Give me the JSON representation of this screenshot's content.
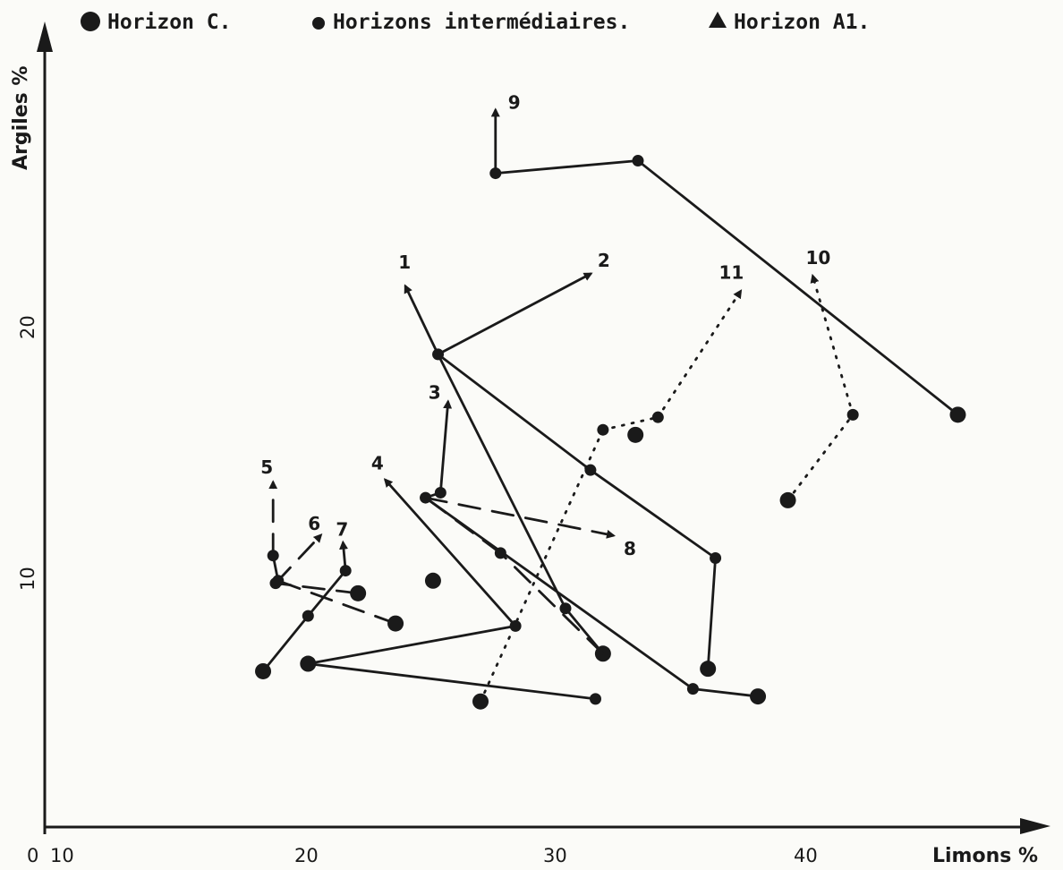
{
  "chart_data": {
    "type": "line",
    "xlabel": "Limons %",
    "ylabel": "Argiles %",
    "xlim": [
      10,
      50
    ],
    "ylim": [
      0,
      28
    ],
    "x_ticks": [
      "10",
      "20",
      "30",
      "40"
    ],
    "y_ticks": [
      "10",
      "20"
    ],
    "origin_label": "0",
    "legend": [
      {
        "marker": "large-dot",
        "label": "Horizon C."
      },
      {
        "marker": "small-dot",
        "label": "Horizons intermédiaires."
      },
      {
        "marker": "triangle",
        "label": "Horizon A1."
      }
    ],
    "series": [
      {
        "name": "1",
        "style": "solid",
        "points": [
          {
            "x": 31.8,
            "y": 7.0,
            "h": "C"
          },
          {
            "x": 30.3,
            "y": 8.8,
            "h": "I"
          },
          {
            "x": 25.2,
            "y": 18.9,
            "h": "I"
          },
          {
            "x": 23.9,
            "y": 21.6,
            "h": "A1"
          }
        ]
      },
      {
        "name": "2",
        "style": "solid",
        "points": [
          {
            "x": 36.0,
            "y": 6.4,
            "h": "C"
          },
          {
            "x": 36.3,
            "y": 10.8,
            "h": "I"
          },
          {
            "x": 31.3,
            "y": 14.3,
            "h": "I"
          },
          {
            "x": 25.2,
            "y": 18.9,
            "h": "I"
          },
          {
            "x": 31.3,
            "y": 22.1,
            "h": "A1"
          }
        ]
      },
      {
        "name": "3",
        "style": "solid",
        "points": [
          {
            "x": 38.0,
            "y": 5.3,
            "h": "C"
          },
          {
            "x": 35.4,
            "y": 5.6,
            "h": "I"
          },
          {
            "x": 24.7,
            "y": 13.2,
            "h": "I"
          },
          {
            "x": 25.3,
            "y": 13.4,
            "h": "I"
          },
          {
            "x": 25.6,
            "y": 17.0,
            "h": "A1"
          }
        ]
      },
      {
        "name": "4",
        "style": "solid",
        "points": [
          {
            "x": 31.5,
            "y": 5.2,
            "h": "I"
          },
          {
            "x": 20.0,
            "y": 6.6,
            "h": "C"
          },
          {
            "x": 28.3,
            "y": 8.1,
            "h": "I"
          },
          {
            "x": 23.1,
            "y": 13.9,
            "h": "A1"
          }
        ]
      },
      {
        "name": "5",
        "style": "dashed",
        "points": [
          {
            "x": 23.5,
            "y": 8.2,
            "h": "C"
          },
          {
            "x": 18.8,
            "y": 9.9,
            "h": "I"
          },
          {
            "x": 18.6,
            "y": 10.9,
            "h": "I"
          },
          {
            "x": 18.6,
            "y": 13.8,
            "h": "A1"
          }
        ]
      },
      {
        "name": "6",
        "style": "dashed",
        "points": [
          {
            "x": 22.0,
            "y": 9.4,
            "h": "C"
          },
          {
            "x": 18.7,
            "y": 9.8,
            "h": "I"
          },
          {
            "x": 20.5,
            "y": 11.7,
            "h": "A1"
          }
        ]
      },
      {
        "name": "7",
        "style": "solid",
        "points": [
          {
            "x": 18.2,
            "y": 6.3,
            "h": "C"
          },
          {
            "x": 20.0,
            "y": 8.5,
            "h": "I"
          },
          {
            "x": 21.5,
            "y": 10.3,
            "h": "I"
          },
          {
            "x": 21.4,
            "y": 11.4,
            "h": "A1"
          }
        ]
      },
      {
        "name": "8",
        "style": "dashed",
        "points": [
          {
            "x": 31.8,
            "y": 7.0,
            "h": "C"
          },
          {
            "x": 27.7,
            "y": 11.0,
            "h": "I"
          },
          {
            "x": 24.7,
            "y": 13.2,
            "h": "I"
          },
          {
            "x": 32.2,
            "y": 11.7,
            "h": "A1"
          }
        ]
      },
      {
        "name": "9",
        "style": "solid",
        "points": [
          {
            "x": 46.0,
            "y": 16.5,
            "h": "C"
          },
          {
            "x": 33.2,
            "y": 26.6,
            "h": "I"
          },
          {
            "x": 27.5,
            "y": 26.1,
            "h": "I"
          },
          {
            "x": 27.5,
            "y": 28.6,
            "h": "A1"
          }
        ]
      },
      {
        "name": "10",
        "style": "dotted",
        "points": [
          {
            "x": 39.2,
            "y": 13.1,
            "h": "C"
          },
          {
            "x": 41.8,
            "y": 16.5,
            "h": "I"
          },
          {
            "x": 40.2,
            "y": 22.0,
            "h": "A1"
          }
        ]
      },
      {
        "name": "11",
        "style": "dotted",
        "points": [
          {
            "x": 26.9,
            "y": 5.1,
            "h": "C"
          },
          {
            "x": 31.8,
            "y": 15.9,
            "h": "I"
          },
          {
            "x": 34.0,
            "y": 16.4,
            "h": "I"
          },
          {
            "x": 37.3,
            "y": 21.4,
            "h": "A1"
          }
        ]
      }
    ],
    "extra_points": [
      {
        "x": 25.0,
        "y": 9.9,
        "h": "C"
      },
      {
        "x": 33.1,
        "y": 15.7,
        "h": "C"
      }
    ]
  }
}
